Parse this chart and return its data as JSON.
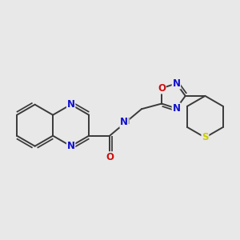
{
  "bg_color": "#e8e8e8",
  "bond_color": "#3a3a3a",
  "bond_width": 1.4,
  "atom_colors": {
    "N": "#1010cc",
    "O": "#cc1010",
    "S": "#cccc00",
    "C": "#3a3a3a"
  },
  "font_size": 8.5,
  "figsize": [
    3.0,
    3.0
  ],
  "dpi": 100
}
